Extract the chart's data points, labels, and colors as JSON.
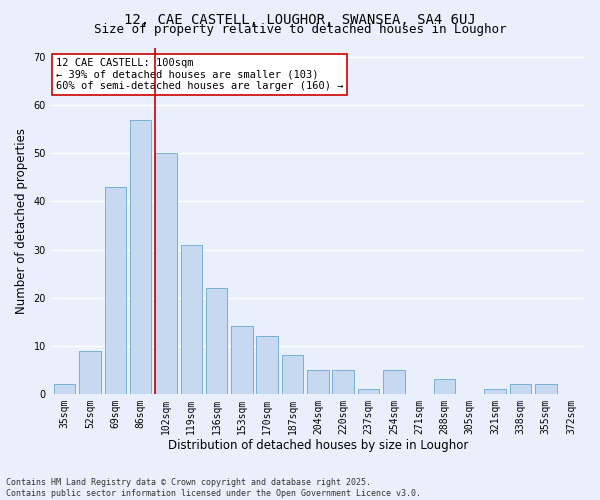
{
  "title1": "12, CAE CASTELL, LOUGHOR, SWANSEA, SA4 6UJ",
  "title2": "Size of property relative to detached houses in Loughor",
  "xlabel": "Distribution of detached houses by size in Loughor",
  "ylabel": "Number of detached properties",
  "categories": [
    "35sqm",
    "52sqm",
    "69sqm",
    "86sqm",
    "102sqm",
    "119sqm",
    "136sqm",
    "153sqm",
    "170sqm",
    "187sqm",
    "204sqm",
    "220sqm",
    "237sqm",
    "254sqm",
    "271sqm",
    "288sqm",
    "305sqm",
    "321sqm",
    "338sqm",
    "355sqm",
    "372sqm"
  ],
  "values": [
    2,
    9,
    43,
    57,
    50,
    31,
    22,
    14,
    12,
    8,
    5,
    5,
    1,
    5,
    0,
    3,
    0,
    1,
    2,
    2,
    0
  ],
  "bar_color": "#c6d9f0",
  "bar_edge_color": "#7bafd4",
  "background_color": "#eaf0fb",
  "grid_color": "#ffffff",
  "vline_x": 4.0,
  "vline_color": "#cc0000",
  "annotation_text": "12 CAE CASTELL: 100sqm\n← 39% of detached houses are smaller (103)\n60% of semi-detached houses are larger (160) →",
  "annotation_box_color": "#ffffff",
  "annotation_box_edge": "#cc0000",
  "ylim": [
    0,
    72
  ],
  "yticks": [
    0,
    10,
    20,
    30,
    40,
    50,
    60,
    70
  ],
  "footnote": "Contains HM Land Registry data © Crown copyright and database right 2025.\nContains public sector information licensed under the Open Government Licence v3.0.",
  "title1_fontsize": 10,
  "title2_fontsize": 9,
  "annotation_fontsize": 7.5,
  "tick_fontsize": 7,
  "ylabel_fontsize": 8.5,
  "xlabel_fontsize": 8.5,
  "footnote_fontsize": 6
}
